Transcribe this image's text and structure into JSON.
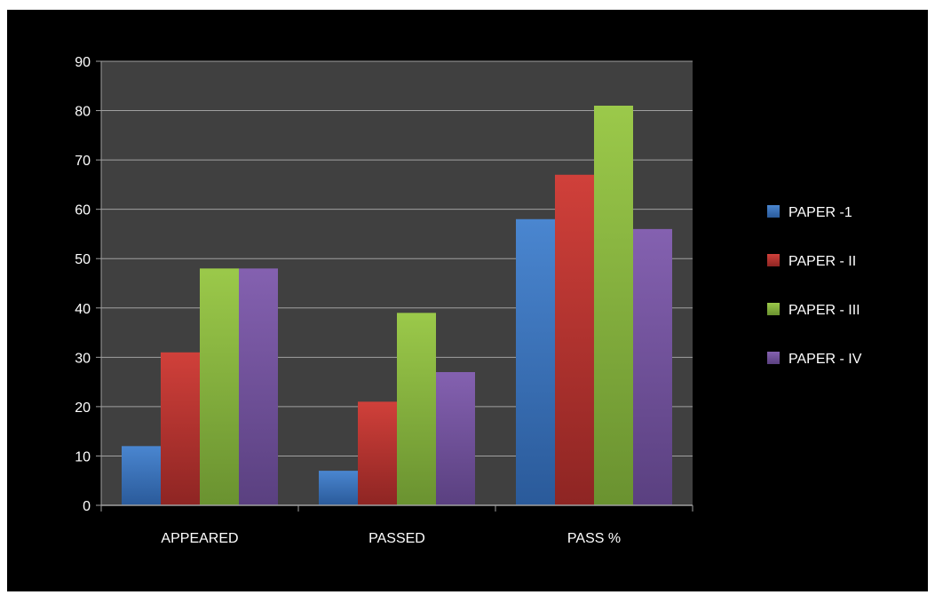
{
  "chart_data": {
    "type": "bar",
    "title": "",
    "xlabel": "",
    "ylabel": "",
    "categories": [
      "APPEARED",
      "PASSED",
      "PASS %"
    ],
    "ylim": [
      0,
      90
    ],
    "yticks": [
      0,
      10,
      20,
      30,
      40,
      50,
      60,
      70,
      80,
      90
    ],
    "grid": true,
    "legend_position": "right",
    "series": [
      {
        "name": "PAPER -1",
        "values": [
          12,
          7,
          58
        ],
        "color": "#4a86d0",
        "color_dark": "#2a5a9a"
      },
      {
        "name": "PAPER - II",
        "values": [
          31,
          21,
          67
        ],
        "color": "#d0403a",
        "color_dark": "#8e2523"
      },
      {
        "name": "PAPER - III",
        "values": [
          48,
          39,
          81
        ],
        "color": "#9bc94a",
        "color_dark": "#6a9230"
      },
      {
        "name": "PAPER - IV",
        "values": [
          48,
          27,
          56
        ],
        "color": "#8461b0",
        "color_dark": "#5a4080"
      }
    ],
    "plot_background": "#404040",
    "background": "#000000",
    "gridline_color": "#a0a0a0",
    "text_color": "#ffffff"
  }
}
